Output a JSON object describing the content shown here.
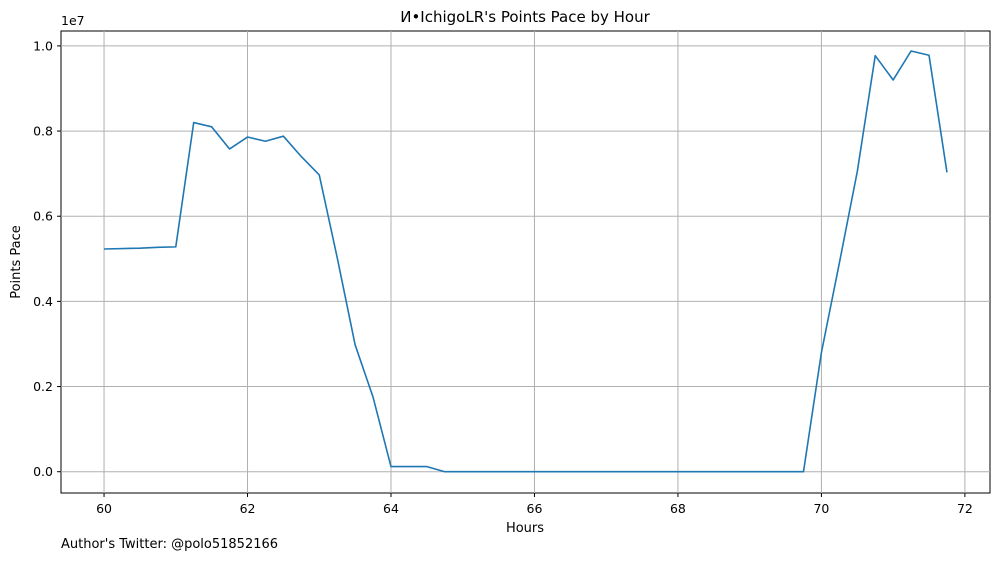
{
  "chart_data": {
    "type": "line",
    "title": "И•IchigoLR's Points Pace by Hour",
    "xlabel": "Hours",
    "ylabel": "Points Pace",
    "y_offset_label": "1e7",
    "xlim": [
      59.4,
      72.35
    ],
    "ylim": [
      -0.05,
      1.035
    ],
    "x_ticks": [
      60,
      62,
      64,
      66,
      68,
      70,
      72
    ],
    "x_tick_labels": [
      "60",
      "62",
      "64",
      "66",
      "68",
      "70",
      "72"
    ],
    "y_ticks": [
      0.0,
      0.2,
      0.4,
      0.6,
      0.8,
      1.0
    ],
    "y_tick_labels": [
      "0.0",
      "0.2",
      "0.4",
      "0.6",
      "0.8",
      "1.0"
    ],
    "grid": true,
    "line_color": "#1f77b4",
    "series": [
      {
        "x": [
          60.0,
          60.5,
          60.75,
          61.0,
          61.25,
          61.5,
          61.75,
          62.0,
          62.25,
          62.5,
          62.75,
          63.0,
          63.25,
          63.5,
          63.75,
          64.0,
          64.25,
          64.5,
          64.75,
          65.0,
          66.0,
          67.0,
          68.0,
          69.0,
          69.5,
          69.75,
          70.0,
          70.25,
          70.5,
          70.75,
          71.0,
          71.25,
          71.5,
          71.75
        ],
        "y": [
          0.523,
          0.525,
          0.527,
          0.528,
          0.82,
          0.81,
          0.758,
          0.786,
          0.776,
          0.788,
          0.74,
          0.697,
          0.503,
          0.298,
          0.175,
          0.012,
          0.012,
          0.012,
          0.0,
          0.0,
          0.0,
          0.0,
          0.0,
          0.0,
          0.0,
          0.0,
          0.28,
          0.49,
          0.705,
          0.977,
          0.92,
          0.988,
          0.978,
          0.703
        ]
      }
    ]
  },
  "footer": {
    "text": "Author's Twitter: @polo51852166"
  }
}
